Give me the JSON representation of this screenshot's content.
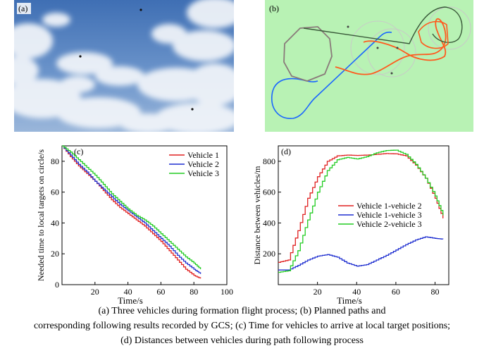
{
  "panels": {
    "a": {
      "label": "(a)"
    },
    "b": {
      "label": "(b)"
    },
    "c": {
      "label": "(c)"
    },
    "d": {
      "label": "(d)"
    }
  },
  "caption": {
    "line1": "(a) Three vehicles during formation flight process; (b) Planned paths and",
    "line2": "corresponding following results recorded by GCS; (c) Time for vehicles to arrive at local target positions;",
    "line3": "(d) Distances between vehicles during path following process"
  },
  "colors": {
    "red": "#e02020",
    "blue": "#1f2fd0",
    "green": "#22cc22",
    "sky": "#5b86c4",
    "gcs_bg": "#b8f2b4",
    "orange_path": "#ff5a1e",
    "blue_path": "#1a66ff",
    "gray_path": "#8a7a7a",
    "dark_green_path": "#3a5a3a"
  },
  "chart_data": [
    {
      "id": "c",
      "type": "line",
      "xlabel": "Time/s",
      "ylabel": "Needed time to local targets on circle/s",
      "xlim": [
        0,
        100
      ],
      "ylim": [
        0,
        90
      ],
      "xticks": [
        20,
        40,
        60,
        80,
        100
      ],
      "yticks": [
        0,
        20,
        40,
        60,
        80
      ],
      "legend_position": "top-right",
      "x": [
        0,
        5,
        10,
        15,
        20,
        25,
        30,
        35,
        40,
        45,
        50,
        55,
        60,
        65,
        70,
        75,
        80,
        84
      ],
      "series": [
        {
          "name": "Vehicle 1",
          "color": "#e02020",
          "values": [
            90,
            83,
            77,
            72,
            67,
            61,
            55,
            50,
            46,
            42,
            38,
            33,
            28,
            22,
            16,
            10,
            6,
            4
          ]
        },
        {
          "name": "Vehicle 2",
          "color": "#1f2fd0",
          "values": [
            90,
            84,
            78,
            73,
            67,
            62,
            57,
            52,
            48,
            44,
            40,
            35,
            30,
            25,
            19,
            14,
            10,
            7
          ]
        },
        {
          "name": "Vehicle 3",
          "color": "#22cc22",
          "values": [
            90,
            86,
            81,
            76,
            71,
            65,
            59,
            54,
            49,
            45,
            42,
            38,
            33,
            28,
            23,
            18,
            14,
            10
          ]
        }
      ]
    },
    {
      "id": "d",
      "type": "line",
      "xlabel": "Time/s",
      "ylabel": "Distance between vehicles/m",
      "xlim": [
        0,
        87
      ],
      "ylim": [
        0,
        900
      ],
      "xticks": [
        20,
        40,
        60,
        80
      ],
      "yticks": [
        200,
        400,
        600,
        800
      ],
      "legend_position": "center-right",
      "x": [
        0,
        5,
        10,
        15,
        20,
        25,
        30,
        35,
        40,
        45,
        50,
        55,
        60,
        65,
        70,
        75,
        80,
        84
      ],
      "series": [
        {
          "name": "Vehicle 1-vehicle 2",
          "color": "#e02020",
          "values": [
            145,
            160,
            350,
            560,
            700,
            800,
            835,
            840,
            838,
            840,
            845,
            850,
            848,
            835,
            775,
            690,
            560,
            430
          ]
        },
        {
          "name": "Vehicle 1-vehicle 3",
          "color": "#1f2fd0",
          "values": [
            95,
            95,
            125,
            160,
            185,
            195,
            178,
            140,
            120,
            130,
            160,
            190,
            225,
            260,
            290,
            310,
            300,
            295
          ]
        },
        {
          "name": "Vehicle 2-vehicle 3",
          "color": "#22cc22",
          "values": [
            80,
            90,
            220,
            420,
            600,
            740,
            810,
            825,
            815,
            830,
            855,
            870,
            872,
            845,
            780,
            690,
            575,
            450
          ]
        }
      ]
    }
  ]
}
